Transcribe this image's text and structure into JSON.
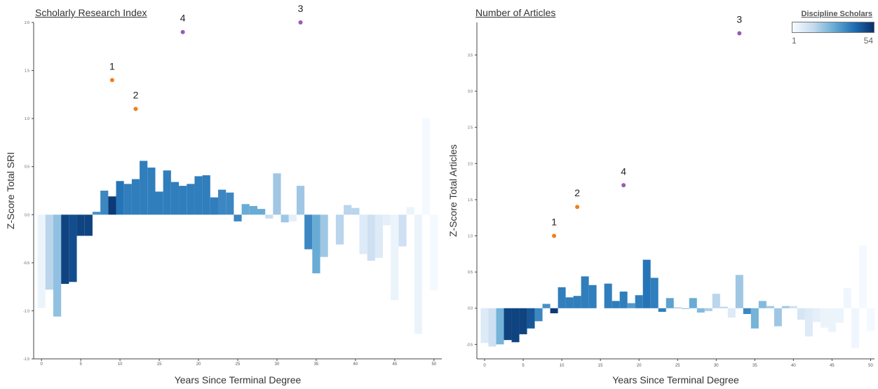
{
  "charts": [
    {
      "title": "Scholarly Research Index",
      "chart_data": {
        "type": "bar",
        "xlabel": "Years Since Terminal Degree",
        "ylabel": "Z-Score Total SRI",
        "xlim": [
          -1,
          51
        ],
        "ylim": [
          -1.5,
          2.0
        ],
        "xticks": [
          "0",
          "5",
          "10",
          "15",
          "20",
          "25",
          "30",
          "35",
          "40",
          "45",
          "50"
        ],
        "yticks": [
          "-1.5",
          "-1.0",
          "-0.5",
          "0.0",
          "0.5",
          "1.0",
          "1.5",
          "2.0"
        ],
        "grid": false,
        "bars": [
          {
            "x": 0,
            "y": -0.97,
            "n": 4
          },
          {
            "x": 1,
            "y": -0.78,
            "n": 16
          },
          {
            "x": 2,
            "y": -1.06,
            "n": 22
          },
          {
            "x": 3,
            "y": -0.72,
            "n": 50
          },
          {
            "x": 4,
            "y": -0.7,
            "n": 48
          },
          {
            "x": 5,
            "y": -0.22,
            "n": 50
          },
          {
            "x": 6,
            "y": -0.22,
            "n": 50
          },
          {
            "x": 7,
            "y": 0.03,
            "n": 34
          },
          {
            "x": 8,
            "y": 0.25,
            "n": 36
          },
          {
            "x": 9,
            "y": 0.19,
            "n": 52
          },
          {
            "x": 10,
            "y": 0.35,
            "n": 40
          },
          {
            "x": 11,
            "y": 0.32,
            "n": 38
          },
          {
            "x": 12,
            "y": 0.37,
            "n": 38
          },
          {
            "x": 13,
            "y": 0.56,
            "n": 38
          },
          {
            "x": 14,
            "y": 0.49,
            "n": 38
          },
          {
            "x": 15,
            "y": 0.24,
            "n": 38
          },
          {
            "x": 16,
            "y": 0.46,
            "n": 38
          },
          {
            "x": 17,
            "y": 0.34,
            "n": 38
          },
          {
            "x": 18,
            "y": 0.3,
            "n": 38
          },
          {
            "x": 19,
            "y": 0.32,
            "n": 38
          },
          {
            "x": 20,
            "y": 0.4,
            "n": 38
          },
          {
            "x": 21,
            "y": 0.41,
            "n": 38
          },
          {
            "x": 22,
            "y": 0.18,
            "n": 38
          },
          {
            "x": 23,
            "y": 0.26,
            "n": 36
          },
          {
            "x": 24,
            "y": 0.23,
            "n": 36
          },
          {
            "x": 25,
            "y": -0.07,
            "n": 36
          },
          {
            "x": 26,
            "y": 0.11,
            "n": 28
          },
          {
            "x": 27,
            "y": 0.09,
            "n": 28
          },
          {
            "x": 28,
            "y": 0.06,
            "n": 28
          },
          {
            "x": 29,
            "y": -0.04,
            "n": 14
          },
          {
            "x": 30,
            "y": 0.43,
            "n": 20
          },
          {
            "x": 31,
            "y": -0.08,
            "n": 20
          },
          {
            "x": 32,
            "y": -0.07,
            "n": 6
          },
          {
            "x": 33,
            "y": 0.3,
            "n": 20
          },
          {
            "x": 34,
            "y": -0.36,
            "n": 36
          },
          {
            "x": 35,
            "y": -0.61,
            "n": 28
          },
          {
            "x": 36,
            "y": -0.44,
            "n": 20
          },
          {
            "x": 38,
            "y": -0.31,
            "n": 16
          },
          {
            "x": 39,
            "y": 0.1,
            "n": 16
          },
          {
            "x": 40,
            "y": 0.07,
            "n": 16
          },
          {
            "x": 41,
            "y": -0.41,
            "n": 8
          },
          {
            "x": 42,
            "y": -0.48,
            "n": 12
          },
          {
            "x": 43,
            "y": -0.45,
            "n": 8
          },
          {
            "x": 44,
            "y": -0.11,
            "n": 6
          },
          {
            "x": 45,
            "y": -0.89,
            "n": 4
          },
          {
            "x": 46,
            "y": -0.33,
            "n": 12
          },
          {
            "x": 47,
            "y": 0.08,
            "n": 4
          },
          {
            "x": 48,
            "y": -1.24,
            "n": 4
          },
          {
            "x": 49,
            "y": 1.0,
            "n": 2
          },
          {
            "x": 50,
            "y": -0.79,
            "n": 2
          }
        ],
        "points": [
          {
            "label": "1",
            "x": 9,
            "y": 1.4,
            "color": "#f07f1c"
          },
          {
            "label": "2",
            "x": 12,
            "y": 1.1,
            "color": "#f07f1c"
          },
          {
            "label": "4",
            "x": 18,
            "y": 1.9,
            "color": "#9b59b6"
          },
          {
            "label": "3",
            "x": 33,
            "y": 2.0,
            "color": "#9b59b6"
          }
        ]
      }
    },
    {
      "title": "Number of Articles",
      "chart_data": {
        "type": "bar",
        "xlabel": "Years Since Terminal Degree",
        "ylabel": "Z-Score Total Articles",
        "xlim": [
          -1,
          50.5
        ],
        "ylim": [
          -0.7,
          3.95
        ],
        "xticks": [
          "0",
          "5",
          "10",
          "15",
          "20",
          "25",
          "30",
          "35",
          "40",
          "45",
          "50"
        ],
        "yticks": [
          "-0.5",
          "0.0",
          "0.5",
          "1.0",
          "1.5",
          "2.0",
          "2.5",
          "3.0",
          "3.5"
        ],
        "grid": false,
        "bars": [
          {
            "x": 0,
            "y": -0.48,
            "n": 8
          },
          {
            "x": 1,
            "y": -0.53,
            "n": 12
          },
          {
            "x": 2,
            "y": -0.5,
            "n": 26
          },
          {
            "x": 3,
            "y": -0.44,
            "n": 50
          },
          {
            "x": 4,
            "y": -0.47,
            "n": 50
          },
          {
            "x": 5,
            "y": -0.36,
            "n": 50
          },
          {
            "x": 6,
            "y": -0.28,
            "n": 46
          },
          {
            "x": 7,
            "y": -0.18,
            "n": 36
          },
          {
            "x": 8,
            "y": 0.06,
            "n": 34
          },
          {
            "x": 9,
            "y": -0.07,
            "n": 52
          },
          {
            "x": 10,
            "y": 0.29,
            "n": 38
          },
          {
            "x": 11,
            "y": 0.15,
            "n": 38
          },
          {
            "x": 12,
            "y": 0.17,
            "n": 38
          },
          {
            "x": 13,
            "y": 0.44,
            "n": 38
          },
          {
            "x": 14,
            "y": 0.32,
            "n": 38
          },
          {
            "x": 15,
            "y": 0.0,
            "n": 38
          },
          {
            "x": 16,
            "y": 0.34,
            "n": 38
          },
          {
            "x": 17,
            "y": 0.1,
            "n": 38
          },
          {
            "x": 18,
            "y": 0.23,
            "n": 38
          },
          {
            "x": 19,
            "y": 0.07,
            "n": 32
          },
          {
            "x": 20,
            "y": 0.18,
            "n": 38
          },
          {
            "x": 21,
            "y": 0.67,
            "n": 40
          },
          {
            "x": 22,
            "y": 0.42,
            "n": 38
          },
          {
            "x": 23,
            "y": -0.05,
            "n": 38
          },
          {
            "x": 24,
            "y": 0.14,
            "n": 30
          },
          {
            "x": 25,
            "y": 0.01,
            "n": 24
          },
          {
            "x": 26,
            "y": -0.01,
            "n": 24
          },
          {
            "x": 27,
            "y": 0.14,
            "n": 28
          },
          {
            "x": 28,
            "y": -0.06,
            "n": 24
          },
          {
            "x": 29,
            "y": -0.04,
            "n": 18
          },
          {
            "x": 30,
            "y": 0.2,
            "n": 16
          },
          {
            "x": 31,
            "y": 0.02,
            "n": 16
          },
          {
            "x": 32,
            "y": -0.13,
            "n": 8
          },
          {
            "x": 33,
            "y": 0.46,
            "n": 20
          },
          {
            "x": 34,
            "y": -0.08,
            "n": 36
          },
          {
            "x": 35,
            "y": -0.28,
            "n": 26
          },
          {
            "x": 36,
            "y": 0.1,
            "n": 24
          },
          {
            "x": 37,
            "y": 0.03,
            "n": 20
          },
          {
            "x": 38,
            "y": -0.25,
            "n": 20
          },
          {
            "x": 39,
            "y": 0.03,
            "n": 20
          },
          {
            "x": 40,
            "y": 0.03,
            "n": 12
          },
          {
            "x": 41,
            "y": -0.16,
            "n": 10
          },
          {
            "x": 42,
            "y": -0.39,
            "n": 8
          },
          {
            "x": 43,
            "y": -0.19,
            "n": 6
          },
          {
            "x": 44,
            "y": -0.27,
            "n": 4
          },
          {
            "x": 45,
            "y": -0.33,
            "n": 4
          },
          {
            "x": 46,
            "y": -0.2,
            "n": 4
          },
          {
            "x": 47,
            "y": 0.28,
            "n": 3
          },
          {
            "x": 48,
            "y": -0.55,
            "n": 3
          },
          {
            "x": 49,
            "y": 0.87,
            "n": 2
          },
          {
            "x": 50,
            "y": -0.32,
            "n": 2
          }
        ],
        "points": [
          {
            "label": "1",
            "x": 9,
            "y": 1.0,
            "color": "#f07f1c"
          },
          {
            "label": "2",
            "x": 12,
            "y": 1.4,
            "color": "#f07f1c"
          },
          {
            "label": "4",
            "x": 18,
            "y": 1.7,
            "color": "#9b59b6"
          },
          {
            "label": "3",
            "x": 33,
            "y": 3.8,
            "color": "#9b59b6"
          }
        ]
      }
    }
  ],
  "legend": {
    "title": "Discipline Scholars",
    "min": "1",
    "max": "54",
    "colors": [
      "#f7fbff",
      "#c6dbef",
      "#6baed6",
      "#2171b5",
      "#08306b"
    ]
  }
}
